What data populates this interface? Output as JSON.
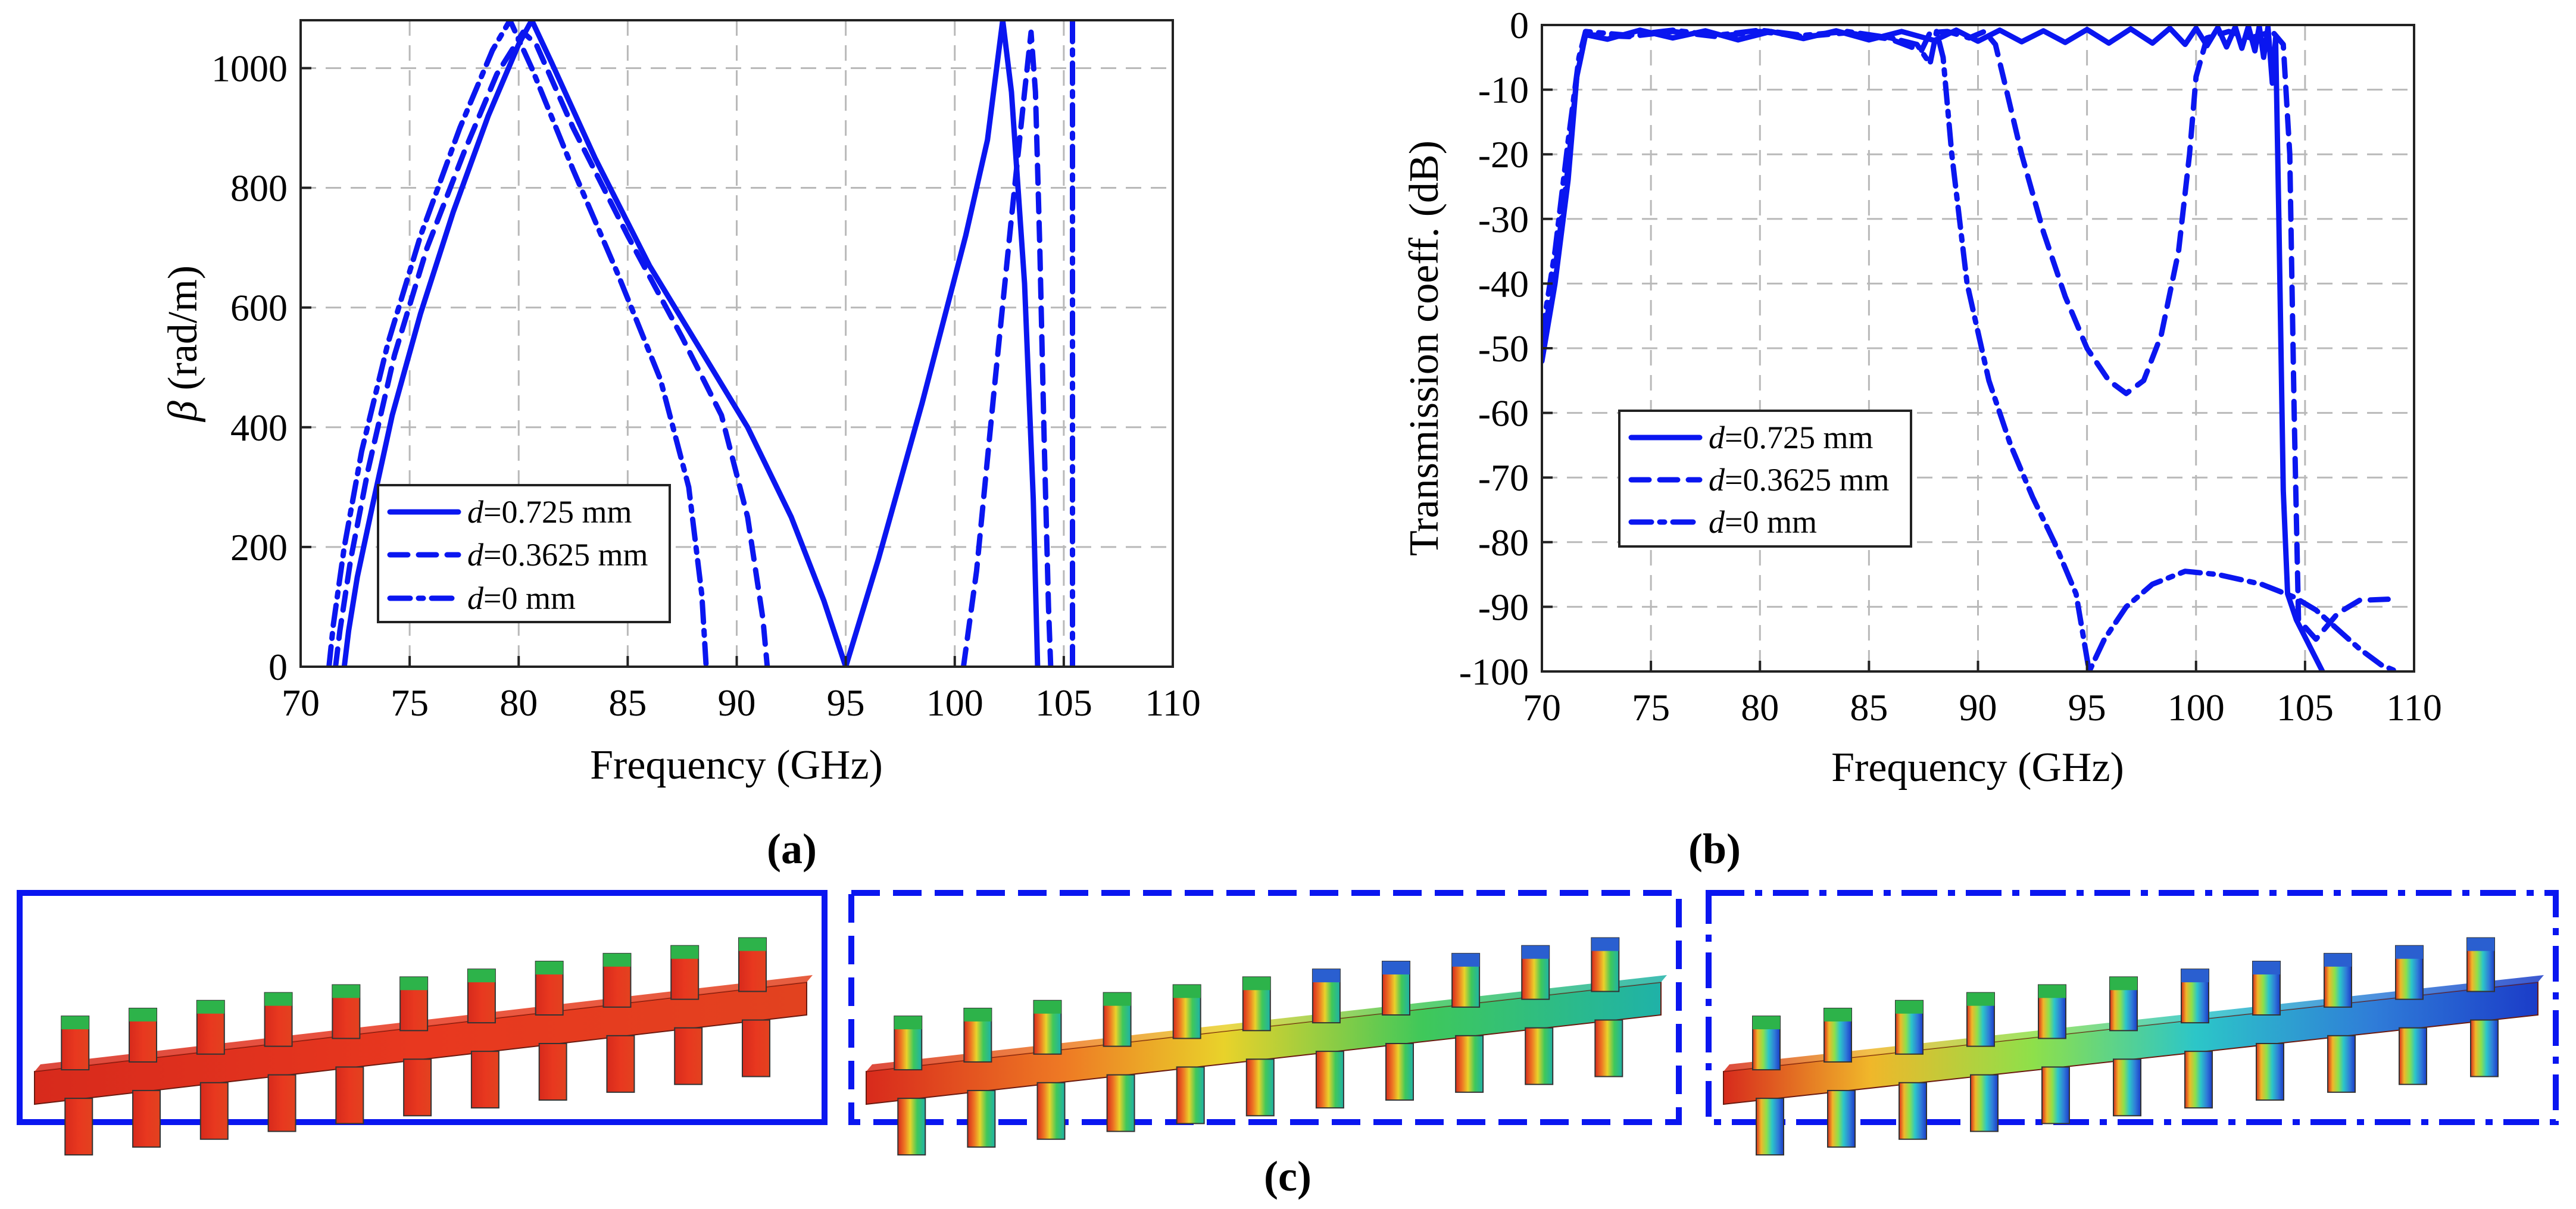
{
  "colors": {
    "series": "#0a16f0",
    "grid": "#b9b9b9",
    "axis": "#222222"
  },
  "chart_data": [
    {
      "id": "a",
      "type": "line",
      "panel_label": "(a)",
      "title": "",
      "xlabel": "Frequency (GHz)",
      "ylabel_symbol": "β",
      "ylabel_rest": " (rad/m)",
      "xlim": [
        70,
        110
      ],
      "ylim": [
        0,
        1080
      ],
      "xticks": [
        "70",
        "75",
        "80",
        "85",
        "90",
        "95",
        "100",
        "105",
        "110"
      ],
      "yticks": [
        "0",
        "200",
        "400",
        "600",
        "800",
        "1000"
      ],
      "grid": true,
      "legend_position": "bottom-left",
      "series": [
        {
          "name": "d=0.725 mm",
          "legend_var": "d",
          "legend_rest": "=0.725 mm",
          "style": "solid",
          "segments": [
            [
              [
                72.0,
                0
              ],
              [
                72.2,
                60
              ],
              [
                72.6,
                150
              ],
              [
                73.3,
                270
              ],
              [
                74.2,
                420
              ],
              [
                75.5,
                590
              ],
              [
                77.0,
                760
              ],
              [
                78.6,
                920
              ],
              [
                80.0,
                1040
              ],
              [
                80.6,
                1080
              ],
              [
                81.5,
                1010
              ],
              [
                83.5,
                850
              ],
              [
                86.0,
                670
              ],
              [
                88.5,
                520
              ],
              [
                90.5,
                400
              ],
              [
                92.5,
                250
              ],
              [
                94.0,
                110
              ],
              [
                95.0,
                0
              ],
              [
                96.5,
                180
              ],
              [
                98.5,
                440
              ],
              [
                100.5,
                720
              ],
              [
                101.5,
                880
              ],
              [
                102.2,
                1080
              ],
              [
                102.6,
                960
              ],
              [
                103.2,
                640
              ],
              [
                103.6,
                280
              ],
              [
                103.8,
                0
              ]
            ]
          ]
        },
        {
          "name": "d=0.3625 mm",
          "legend_var": "d",
          "legend_rest": "=0.3625 mm",
          "style": "dashed",
          "segments": [
            [
              [
                71.6,
                0
              ],
              [
                71.8,
                60
              ],
              [
                72.3,
                180
              ],
              [
                73.1,
                330
              ],
              [
                74.3,
                520
              ],
              [
                75.8,
                700
              ],
              [
                77.5,
                860
              ],
              [
                79.0,
                990
              ],
              [
                80.2,
                1060
              ],
              [
                80.8,
                1040
              ],
              [
                82.5,
                900
              ],
              [
                85.0,
                720
              ],
              [
                87.5,
                550
              ],
              [
                89.3,
                420
              ],
              [
                90.5,
                250
              ],
              [
                91.2,
                80
              ],
              [
                91.4,
                0
              ]
            ],
            [
              [
                100.4,
                0
              ],
              [
                101.0,
                160
              ],
              [
                101.8,
                460
              ],
              [
                102.6,
                750
              ],
              [
                103.2,
                960
              ],
              [
                103.5,
                1060
              ],
              [
                103.7,
                960
              ],
              [
                103.9,
                700
              ],
              [
                104.1,
                380
              ],
              [
                104.3,
                100
              ],
              [
                104.4,
                0
              ]
            ]
          ]
        },
        {
          "name": "d=0 mm",
          "legend_var": "d",
          "legend_rest": "=0 mm",
          "style": "dashdot",
          "segments": [
            [
              [
                71.3,
                0
              ],
              [
                71.5,
                70
              ],
              [
                72.0,
                200
              ],
              [
                72.8,
                360
              ],
              [
                74.0,
                540
              ],
              [
                75.5,
                720
              ],
              [
                77.3,
                900
              ],
              [
                78.8,
                1030
              ],
              [
                79.6,
                1080
              ],
              [
                80.6,
                1000
              ],
              [
                82.5,
                830
              ],
              [
                84.5,
                660
              ],
              [
                86.5,
                480
              ],
              [
                87.8,
                300
              ],
              [
                88.4,
                120
              ],
              [
                88.6,
                0
              ]
            ],
            [
              [
                105.4,
                0
              ],
              [
                105.4,
                1080
              ]
            ]
          ]
        }
      ]
    },
    {
      "id": "b",
      "type": "line",
      "panel_label": "(b)",
      "title": "",
      "xlabel": "Frequency (GHz)",
      "ylabel": "Transmission coeff. (dB)",
      "xlim": [
        70,
        110
      ],
      "ylim": [
        -100,
        0
      ],
      "xticks": [
        "70",
        "75",
        "80",
        "85",
        "90",
        "95",
        "100",
        "105",
        "110"
      ],
      "yticks": [
        "0",
        "-10",
        "-20",
        "-30",
        "-40",
        "-50",
        "-60",
        "-70",
        "-80",
        "-90",
        "-100"
      ],
      "grid": true,
      "legend_position": "center-left",
      "series": [
        {
          "name": "d=0.725 mm",
          "legend_var": "d",
          "legend_rest": "=0.725 mm",
          "style": "solid",
          "segments": [
            [
              [
                70.0,
                -52
              ],
              [
                70.6,
                -40
              ],
              [
                71.2,
                -24
              ],
              [
                71.6,
                -8
              ],
              [
                72.0,
                -1.5
              ],
              [
                73.0,
                -2.2
              ],
              [
                74.5,
                -0.8
              ],
              [
                76.0,
                -2.0
              ],
              [
                77.5,
                -0.9
              ],
              [
                79.0,
                -2.3
              ],
              [
                80.5,
                -1.0
              ],
              [
                82.0,
                -2.1
              ],
              [
                83.5,
                -0.9
              ],
              [
                85.0,
                -2.3
              ],
              [
                86.5,
                -1.0
              ],
              [
                88.0,
                -2.4
              ],
              [
                89.0,
                -0.8
              ],
              [
                90.0,
                -2.5
              ],
              [
                91.0,
                -0.8
              ],
              [
                92.0,
                -2.6
              ],
              [
                93.0,
                -0.9
              ],
              [
                94.0,
                -2.7
              ],
              [
                95.0,
                -0.7
              ],
              [
                96.0,
                -2.8
              ],
              [
                97.0,
                -0.6
              ],
              [
                98.0,
                -2.8
              ],
              [
                98.8,
                -0.5
              ],
              [
                99.5,
                -3.0
              ],
              [
                100.0,
                -0.5
              ],
              [
                100.5,
                -3.2
              ],
              [
                101.0,
                -0.4
              ],
              [
                101.4,
                -3.4
              ],
              [
                101.8,
                -0.3
              ],
              [
                102.1,
                -3.6
              ],
              [
                102.4,
                -0.2
              ],
              [
                102.7,
                -4.0
              ],
              [
                102.9,
                -0.2
              ],
              [
                103.1,
                -5.0
              ],
              [
                103.3,
                -0.3
              ],
              [
                103.5,
                -9.0
              ],
              [
                103.65,
                -2.0
              ],
              [
                103.8,
                -30.0
              ],
              [
                104.0,
                -72.0
              ],
              [
                104.2,
                -88.0
              ],
              [
                104.6,
                -92.0
              ],
              [
                105.2,
                -96.0
              ],
              [
                105.8,
                -100.0
              ]
            ]
          ]
        },
        {
          "name": "d=0.3625 mm",
          "legend_var": "d",
          "legend_rest": "=0.3625 mm",
          "style": "dashed",
          "segments": [
            [
              [
                70.0,
                -50
              ],
              [
                70.6,
                -38
              ],
              [
                71.2,
                -22
              ],
              [
                71.6,
                -8
              ],
              [
                72.0,
                -1.5
              ],
              [
                74.0,
                -1.8
              ],
              [
                76.0,
                -1.0
              ],
              [
                78.0,
                -1.8
              ],
              [
                80.0,
                -1.0
              ],
              [
                82.0,
                -1.8
              ],
              [
                84.0,
                -1.2
              ],
              [
                86.0,
                -2.2
              ],
              [
                87.4,
                -4.0
              ],
              [
                87.8,
                -1.2
              ],
              [
                88.6,
                -1.0
              ],
              [
                89.6,
                -2.0
              ],
              [
                90.3,
                -1.0
              ],
              [
                90.8,
                -3.0
              ],
              [
                91.3,
                -10.0
              ],
              [
                92.0,
                -20.0
              ],
              [
                93.0,
                -32.0
              ],
              [
                94.0,
                -42.0
              ],
              [
                95.0,
                -50.0
              ],
              [
                96.0,
                -55.0
              ],
              [
                96.8,
                -57.0
              ],
              [
                97.6,
                -55.0
              ],
              [
                98.4,
                -48.0
              ],
              [
                99.2,
                -35.0
              ],
              [
                99.7,
                -20.0
              ],
              [
                100.0,
                -8.0
              ],
              [
                100.5,
                -2.0
              ],
              [
                101.5,
                -1.0
              ],
              [
                102.5,
                -2.0
              ],
              [
                103.5,
                -1.0
              ],
              [
                104.0,
                -3.0
              ],
              [
                104.3,
                -20.0
              ],
              [
                104.5,
                -60.0
              ],
              [
                104.7,
                -92.0
              ],
              [
                105.5,
                -95.0
              ],
              [
                106.5,
                -91.0
              ],
              [
                107.5,
                -89.0
              ],
              [
                109.0,
                -88.8
              ]
            ]
          ]
        },
        {
          "name": "d=0 mm",
          "legend_var": "d",
          "legend_rest": "=0 mm",
          "style": "dashdot",
          "segments": [
            [
              [
                70.0,
                -48
              ],
              [
                70.6,
                -35
              ],
              [
                71.2,
                -18
              ],
              [
                71.7,
                -5
              ],
              [
                72.0,
                -1.0
              ],
              [
                74.0,
                -1.6
              ],
              [
                76.0,
                -0.8
              ],
              [
                78.0,
                -1.6
              ],
              [
                80.0,
                -0.8
              ],
              [
                82.0,
                -1.6
              ],
              [
                84.0,
                -1.0
              ],
              [
                86.0,
                -2.0
              ],
              [
                87.2,
                -3.0
              ],
              [
                87.8,
                -6.0
              ],
              [
                88.1,
                -1.0
              ],
              [
                88.4,
                -5.0
              ],
              [
                88.8,
                -20.0
              ],
              [
                89.5,
                -40.0
              ],
              [
                90.5,
                -55.0
              ],
              [
                91.5,
                -65.0
              ],
              [
                92.5,
                -73.0
              ],
              [
                93.5,
                -80.0
              ],
              [
                94.5,
                -88.0
              ],
              [
                95.1,
                -100.0
              ],
              [
                95.8,
                -95.0
              ],
              [
                96.8,
                -90.0
              ],
              [
                98.0,
                -86.5
              ],
              [
                99.5,
                -84.5
              ],
              [
                101.0,
                -85.0
              ],
              [
                103.0,
                -86.5
              ],
              [
                104.5,
                -88.5
              ],
              [
                105.5,
                -90.5
              ],
              [
                106.5,
                -93.5
              ],
              [
                107.5,
                -96.5
              ],
              [
                108.5,
                -99.0
              ],
              [
                109.2,
                -100.0
              ]
            ]
          ]
        }
      ]
    }
  ],
  "field_panels": {
    "panel_label": "(c)",
    "items": [
      {
        "name": "d=0.725 mm",
        "border": "solid",
        "uniformity": 0.0
      },
      {
        "name": "d=0.3625 mm",
        "border": "dashed",
        "uniformity": 0.55
      },
      {
        "name": "d=0 mm",
        "border": "dashdot",
        "uniformity": 1.0
      }
    ]
  }
}
